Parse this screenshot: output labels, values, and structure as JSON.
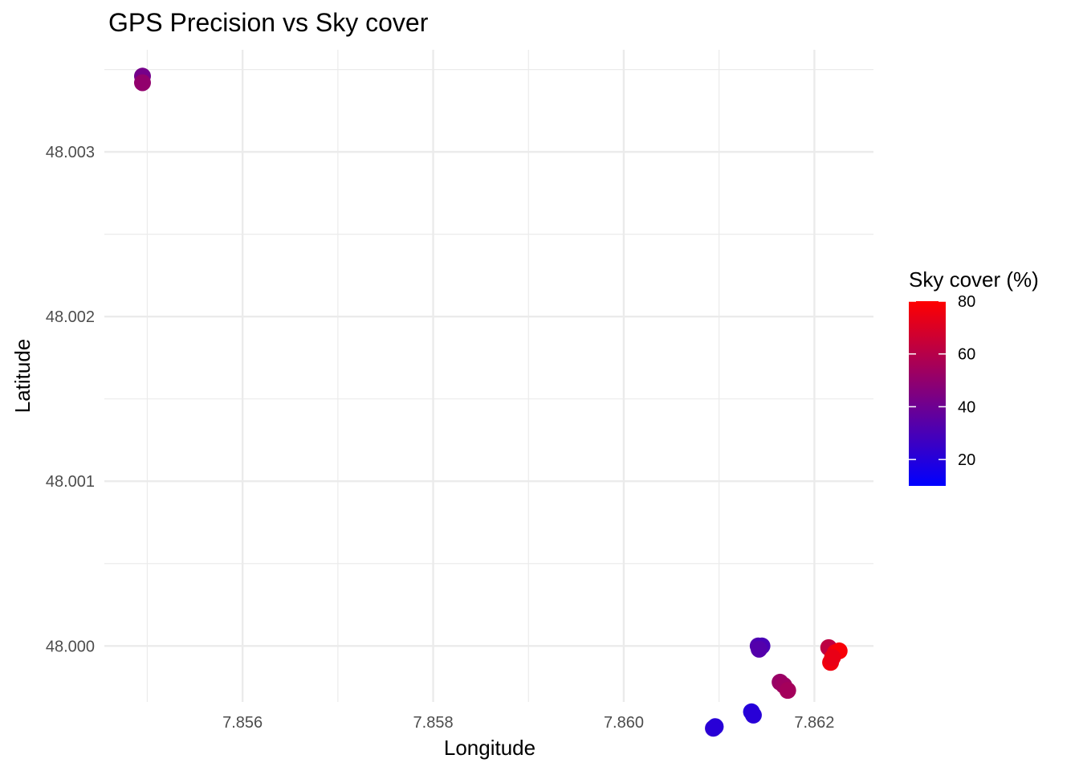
{
  "chart_data": {
    "type": "scatter",
    "title": "GPS Precision vs Sky cover",
    "xlabel": "Longitude",
    "ylabel": "Latitude",
    "xlim": [
      7.85455,
      7.86262
    ],
    "ylim": [
      47.99966,
      48.00362
    ],
    "x_ticks": [
      7.856,
      7.858,
      7.86,
      7.862
    ],
    "x_tick_labels": [
      "7.856",
      "7.858",
      "7.860",
      "7.862"
    ],
    "y_ticks": [
      48.0,
      48.001,
      48.002,
      48.003
    ],
    "y_tick_labels": [
      "48.000",
      "48.001",
      "48.002",
      "48.003"
    ],
    "grid": true,
    "color_scale": {
      "title": "Sky cover (%)",
      "low_color": "#0000ff",
      "high_color": "#ff0000",
      "min": 10,
      "max": 80,
      "ticks": [
        20,
        40,
        60,
        80
      ],
      "tick_labels": [
        "20",
        "40",
        "60",
        "80"
      ],
      "legend_position": "right"
    },
    "points": [
      {
        "x": 7.85495,
        "y": 48.00346,
        "sky_cover": 42
      },
      {
        "x": 7.85495,
        "y": 48.00342,
        "sky_cover": 50
      },
      {
        "x": 7.86094,
        "y": 47.9995,
        "sky_cover": 22
      },
      {
        "x": 7.86096,
        "y": 47.99951,
        "sky_cover": 21
      },
      {
        "x": 7.86134,
        "y": 47.9996,
        "sky_cover": 20
      },
      {
        "x": 7.86136,
        "y": 47.99958,
        "sky_cover": 21
      },
      {
        "x": 7.86141,
        "y": 48.0,
        "sky_cover": 32
      },
      {
        "x": 7.86145,
        "y": 48.0,
        "sky_cover": 30
      },
      {
        "x": 7.86142,
        "y": 47.99998,
        "sky_cover": 33
      },
      {
        "x": 7.86164,
        "y": 47.99978,
        "sky_cover": 52
      },
      {
        "x": 7.86168,
        "y": 47.99976,
        "sky_cover": 53
      },
      {
        "x": 7.86172,
        "y": 47.99973,
        "sky_cover": 55
      },
      {
        "x": 7.86215,
        "y": 47.99999,
        "sky_cover": 62
      },
      {
        "x": 7.86222,
        "y": 47.99996,
        "sky_cover": 75
      },
      {
        "x": 7.86226,
        "y": 47.99997,
        "sky_cover": 78
      },
      {
        "x": 7.86217,
        "y": 47.9999,
        "sky_cover": 76
      },
      {
        "x": 7.86219,
        "y": 47.99993,
        "sky_cover": 74
      }
    ]
  }
}
